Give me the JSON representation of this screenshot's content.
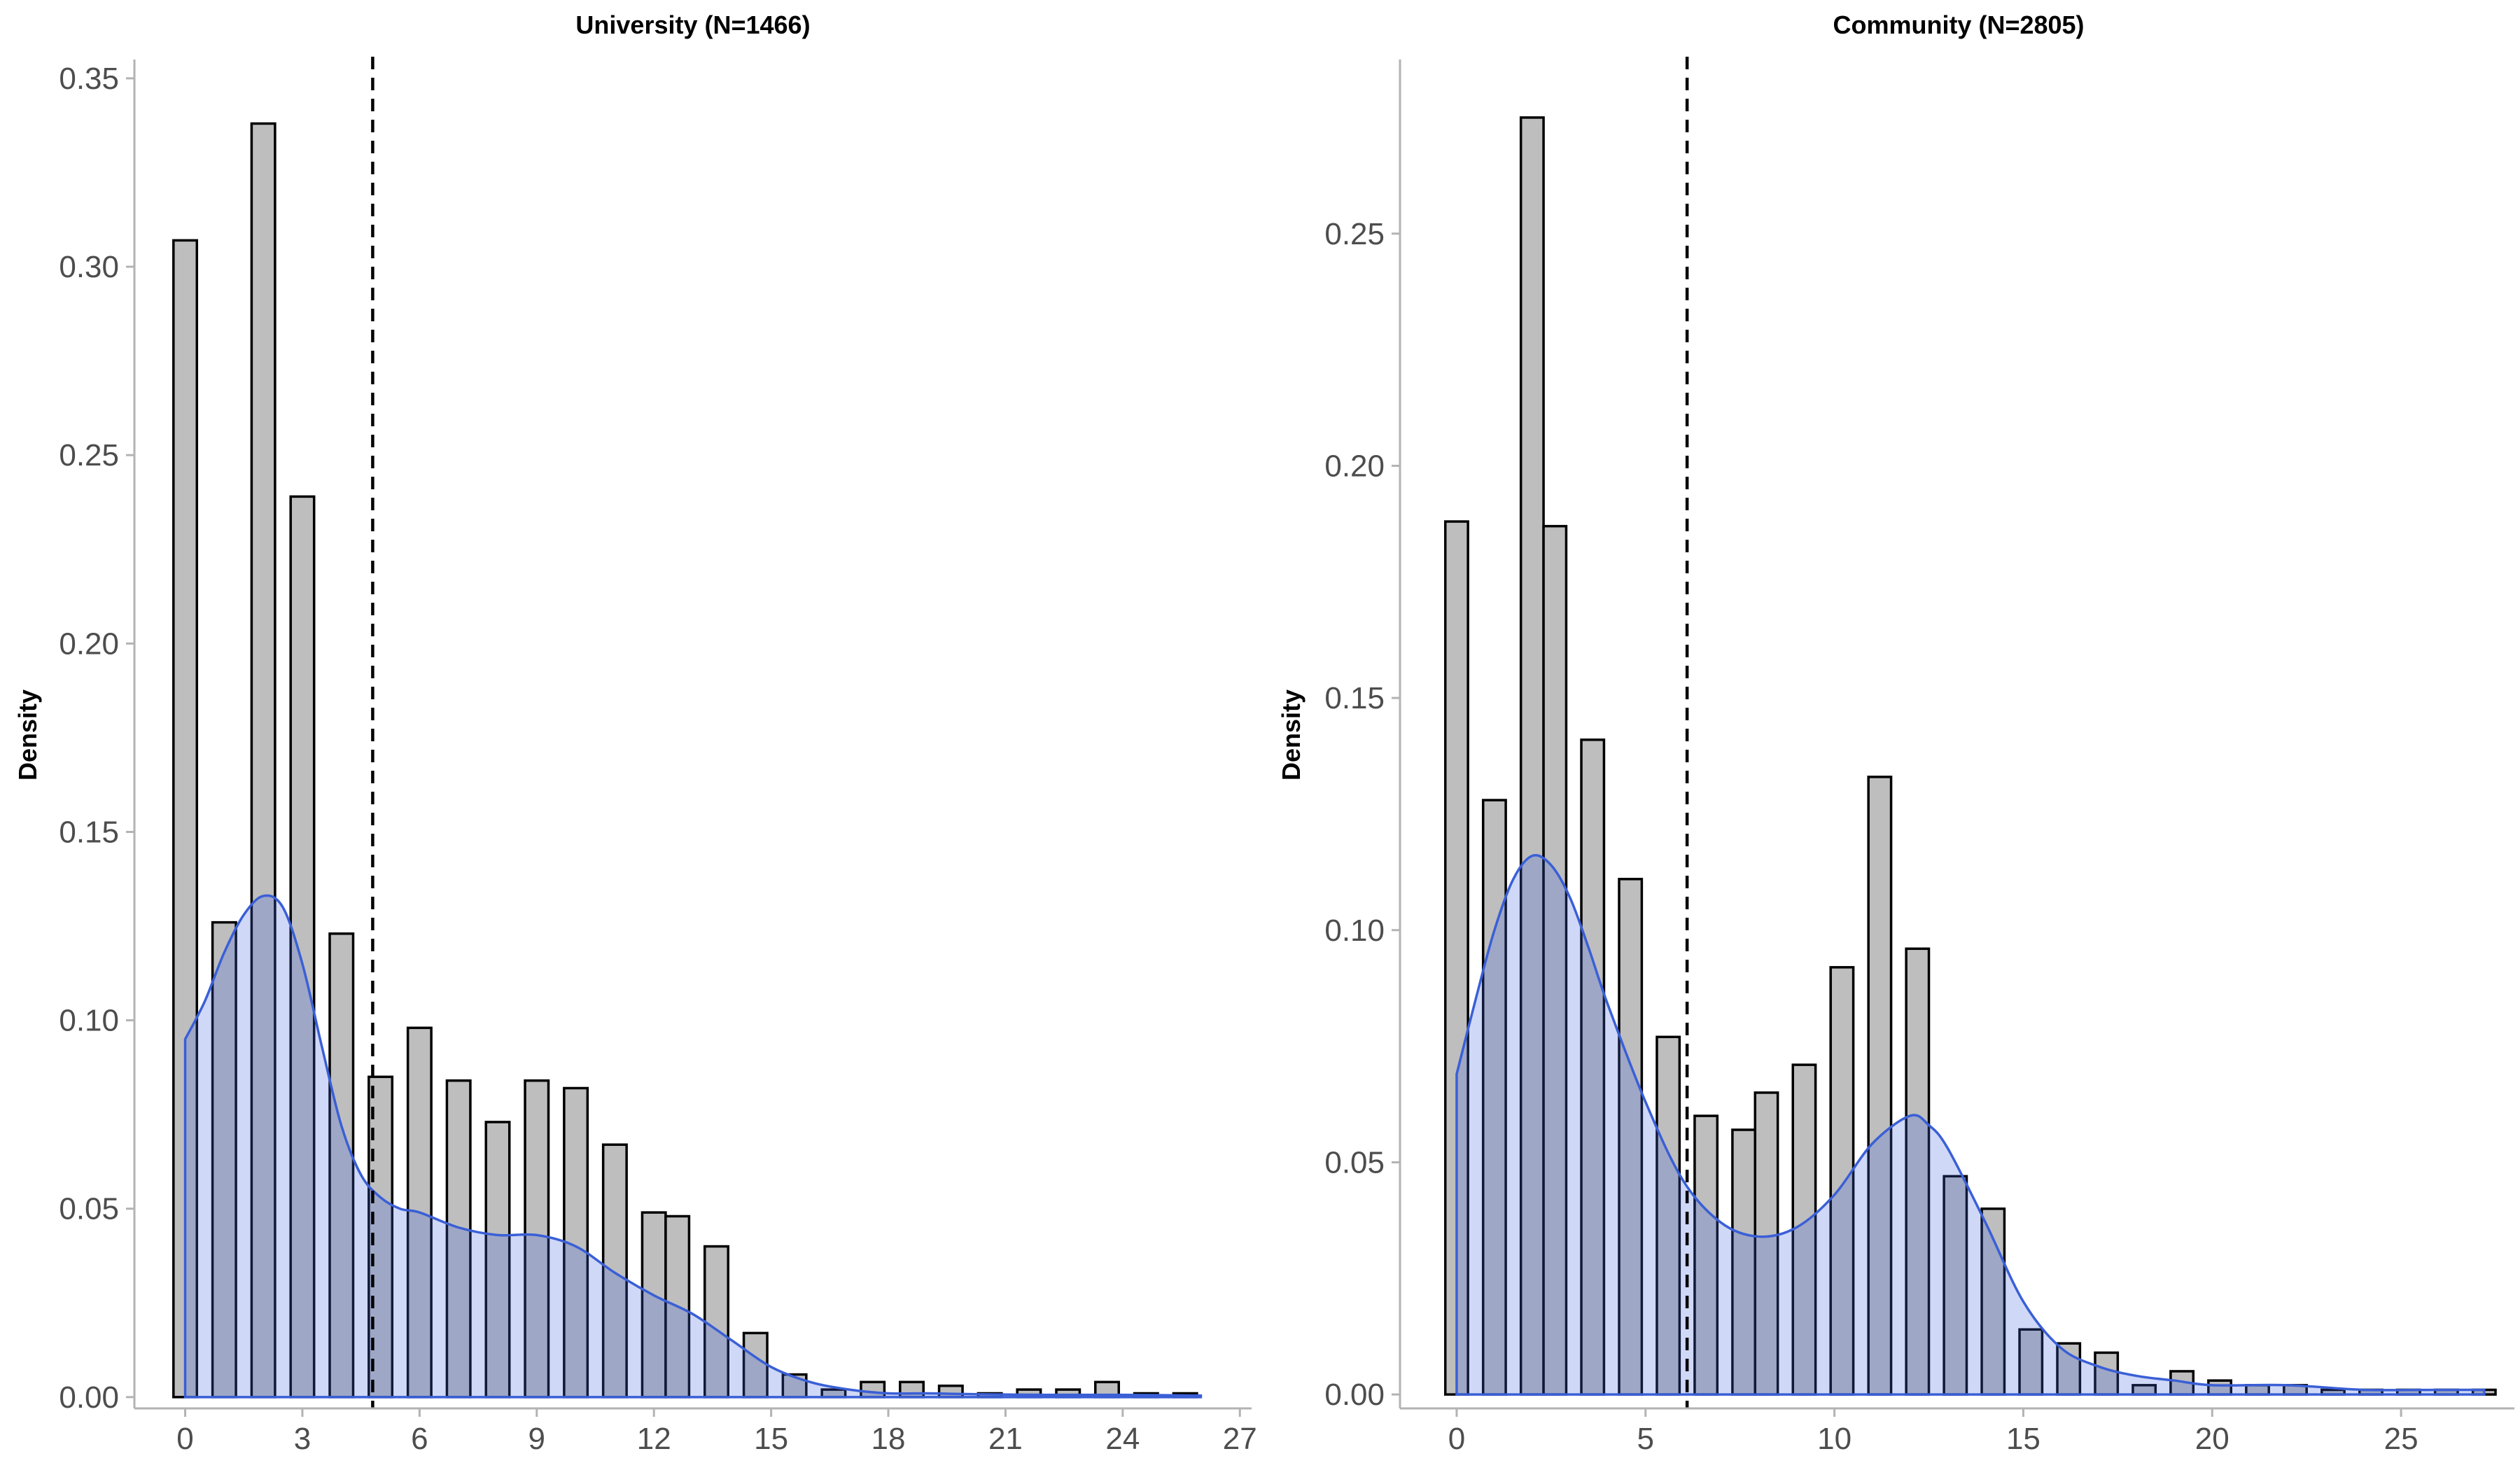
{
  "chart_data": [
    {
      "type": "bar",
      "title": "University (N=1466)",
      "xlabel": "",
      "ylabel": "Density",
      "xlim": [
        -1.3,
        27.3
      ],
      "ylim": [
        -0.003,
        0.355
      ],
      "x_ticks": [
        0,
        3,
        6,
        9,
        12,
        15,
        18,
        21,
        24,
        27
      ],
      "y_ticks": [
        0.0,
        0.05,
        0.1,
        0.15,
        0.2,
        0.25,
        0.3,
        0.35
      ],
      "y_tick_labels": [
        "0.00",
        "0.05",
        "0.10",
        "0.15",
        "0.20",
        "0.25",
        "0.30",
        "0.35"
      ],
      "bin_width": 0.6,
      "bins_x": [
        0,
        1,
        2,
        3,
        4,
        5,
        6,
        7,
        8,
        9,
        10,
        11,
        12,
        12.6,
        13.6,
        14.6,
        15.6,
        16.6,
        17.6,
        18.6,
        19.6,
        20.6,
        21.6,
        22.6,
        23.6,
        24.6,
        25.6
      ],
      "values": [
        0.307,
        0.126,
        0.338,
        0.239,
        0.123,
        0.085,
        0.098,
        0.084,
        0.073,
        0.084,
        0.082,
        0.067,
        0.049,
        0.048,
        0.04,
        0.017,
        0.006,
        0.002,
        0.004,
        0.004,
        0.003,
        0.001,
        0.002,
        0.002,
        0.004,
        0.001,
        0.001
      ],
      "mean": 4.8,
      "density_x": [
        0,
        0.5,
        1,
        1.5,
        2,
        2.5,
        3,
        3.5,
        4,
        4.5,
        5,
        5.5,
        6,
        7,
        8,
        9,
        10,
        11,
        12,
        13,
        14,
        15,
        16,
        17,
        18,
        19,
        20,
        22,
        24,
        26
      ],
      "density_y": [
        0.095,
        0.105,
        0.118,
        0.128,
        0.133,
        0.13,
        0.115,
        0.093,
        0.072,
        0.059,
        0.053,
        0.05,
        0.049,
        0.045,
        0.043,
        0.043,
        0.04,
        0.033,
        0.027,
        0.022,
        0.015,
        0.008,
        0.004,
        0.002,
        0.001,
        0.001,
        0.0008,
        0.0006,
        0.0006,
        0.0004
      ]
    },
    {
      "type": "bar",
      "title": "Community (N=2805)",
      "xlabel": "",
      "ylabel": "Density",
      "xlim": [
        -1.5,
        28.0
      ],
      "ylim": [
        -0.003,
        0.2875
      ],
      "x_ticks": [
        0,
        5,
        10,
        15,
        20,
        25
      ],
      "y_ticks": [
        0.0,
        0.05,
        0.1,
        0.15,
        0.2,
        0.25
      ],
      "y_tick_labels": [
        "0.00",
        "0.05",
        "0.10",
        "0.15",
        "0.20",
        "0.25"
      ],
      "bin_width": 0.6,
      "bins_x": [
        0,
        1,
        2,
        2.6,
        3.6,
        4.6,
        5.6,
        6.6,
        7.6,
        8.2,
        9.2,
        10.2,
        11.2,
        12.2,
        13.2,
        14.2,
        15.2,
        16.2,
        17.2,
        18.2,
        19.2,
        20.2,
        21.2,
        22.2,
        23.2,
        24.2,
        25.2,
        26.2,
        27.2
      ],
      "values": [
        0.188,
        0.128,
        0.275,
        0.187,
        0.141,
        0.111,
        0.077,
        0.06,
        0.057,
        0.065,
        0.071,
        0.092,
        0.133,
        0.096,
        0.047,
        0.04,
        0.014,
        0.011,
        0.009,
        0.002,
        0.005,
        0.003,
        0.002,
        0.002,
        0.001,
        0.001,
        0.001,
        0.001,
        0.001
      ],
      "mean": 6.1,
      "density_x": [
        0,
        0.5,
        1,
        1.5,
        2,
        2.5,
        3,
        3.5,
        4,
        5,
        6,
        7,
        8,
        9,
        10,
        11,
        12,
        12.5,
        13,
        14,
        15,
        16,
        17,
        18,
        19,
        20,
        22,
        24,
        26,
        27.2
      ],
      "density_y": [
        0.069,
        0.085,
        0.1,
        0.111,
        0.116,
        0.114,
        0.107,
        0.096,
        0.084,
        0.063,
        0.046,
        0.037,
        0.034,
        0.036,
        0.043,
        0.054,
        0.06,
        0.058,
        0.053,
        0.037,
        0.02,
        0.01,
        0.006,
        0.004,
        0.003,
        0.002,
        0.002,
        0.001,
        0.001,
        0.001
      ]
    }
  ]
}
